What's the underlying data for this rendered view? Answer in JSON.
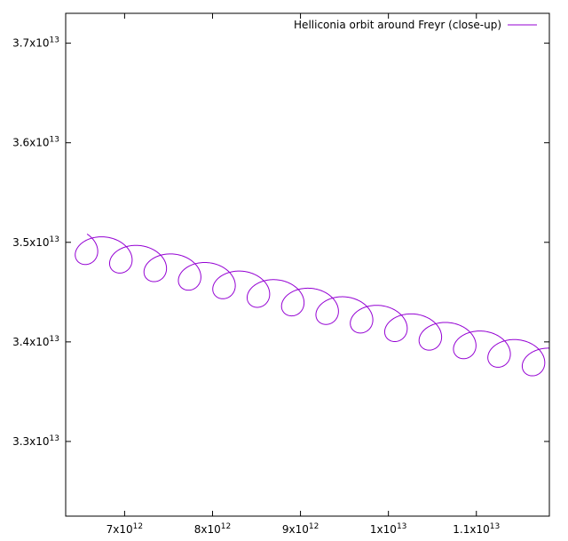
{
  "chart_data": {
    "type": "line",
    "title": "",
    "xlabel": "",
    "ylabel": "",
    "xlim": [
      6330000000000.0,
      11830000000000.0
    ],
    "ylim": [
      32250000000000.0,
      37300000000000.0
    ],
    "x_ticks": [
      {
        "value": 7000000000000.0,
        "mantissa": "7x10",
        "exp": "12"
      },
      {
        "value": 8000000000000.0,
        "mantissa": "8x10",
        "exp": "12"
      },
      {
        "value": 9000000000000.0,
        "mantissa": "9x10",
        "exp": "12"
      },
      {
        "value": 10000000000000.0,
        "mantissa": "1x10",
        "exp": "13"
      },
      {
        "value": 11000000000000.0,
        "mantissa": "1.1x10",
        "exp": "13"
      }
    ],
    "y_ticks": [
      {
        "value": 33000000000000.0,
        "mantissa": "3.3x10",
        "exp": "13"
      },
      {
        "value": 34000000000000.0,
        "mantissa": "3.4x10",
        "exp": "13"
      },
      {
        "value": 35000000000000.0,
        "mantissa": "3.5x10",
        "exp": "13"
      },
      {
        "value": 36000000000000.0,
        "mantissa": "3.6x10",
        "exp": "13"
      },
      {
        "value": 37000000000000.0,
        "mantissa": "3.7x10",
        "exp": "13"
      }
    ],
    "legend_position": "top-right",
    "grid": false,
    "series": [
      {
        "name": "Helliconia orbit around Freyr (close-up)",
        "color": "#9400d3",
        "trochoid": {
          "center_start": [
            6420000000000.0,
            34970000000000.0
          ],
          "center_drift_per_loop": [
            391000000000.0,
            -86000000000.0
          ],
          "radius": [
            217000000000.0,
            160000000000.0
          ],
          "loops": 14.5,
          "phase_start_deg": 45
        }
      }
    ]
  }
}
